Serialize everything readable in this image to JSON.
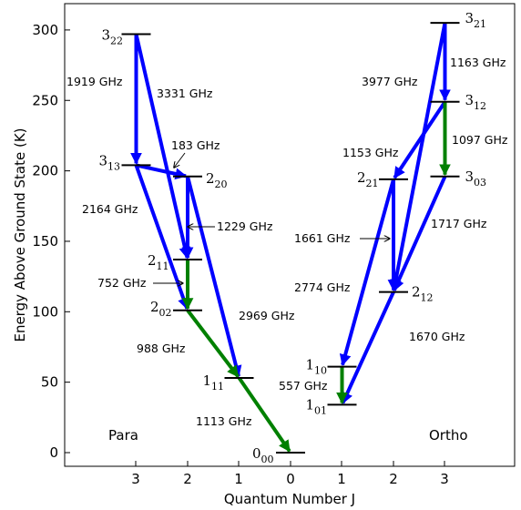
{
  "axes": {
    "ylabel": "Energy Above Ground State (K)",
    "xlabel": "Quantum Number J",
    "yticks": [
      "0",
      "50",
      "100",
      "150",
      "200",
      "250",
      "300"
    ],
    "xticks": [
      "3",
      "2",
      "1",
      "0",
      "1",
      "2",
      "3"
    ]
  },
  "regions": {
    "para": "Para",
    "ortho": "Ortho"
  },
  "levels": [
    {
      "id": "3_22",
      "J": 3,
      "side": "para",
      "E": 297,
      "main": "3",
      "sub": "22"
    },
    {
      "id": "3_13",
      "J": 3,
      "side": "para",
      "E": 204,
      "main": "3",
      "sub": "13"
    },
    {
      "id": "2_20",
      "J": 2,
      "side": "para",
      "E": 196,
      "main": "2",
      "sub": "20"
    },
    {
      "id": "2_11",
      "J": 2,
      "side": "para",
      "E": 137,
      "main": "2",
      "sub": "11"
    },
    {
      "id": "2_02",
      "J": 2,
      "side": "para",
      "E": 101,
      "main": "2",
      "sub": "02"
    },
    {
      "id": "1_11",
      "J": 1,
      "side": "para",
      "E": 53,
      "main": "1",
      "sub": "11"
    },
    {
      "id": "0_00",
      "J": 0,
      "side": "para",
      "E": 0,
      "main": "0",
      "sub": "00"
    },
    {
      "id": "3_21",
      "J": 3,
      "side": "ortho",
      "E": 305,
      "main": "3",
      "sub": "21"
    },
    {
      "id": "3_12",
      "J": 3,
      "side": "ortho",
      "E": 249,
      "main": "3",
      "sub": "12"
    },
    {
      "id": "3_03",
      "J": 3,
      "side": "ortho",
      "E": 196,
      "main": "3",
      "sub": "03"
    },
    {
      "id": "2_21",
      "J": 2,
      "side": "ortho",
      "E": 194,
      "main": "2",
      "sub": "21"
    },
    {
      "id": "2_12",
      "J": 2,
      "side": "ortho",
      "E": 114,
      "main": "2",
      "sub": "12"
    },
    {
      "id": "1_10",
      "J": 1,
      "side": "ortho",
      "E": 61,
      "main": "1",
      "sub": "10"
    },
    {
      "id": "1_01",
      "J": 1,
      "side": "ortho",
      "E": 34,
      "main": "1",
      "sub": "01"
    }
  ],
  "transitions": [
    {
      "from": "3_22",
      "to": "3_13",
      "freq": "1919 GHz",
      "color": "#0000ff"
    },
    {
      "from": "3_22",
      "to": "2_11",
      "freq": "3331 GHz",
      "color": "#0000ff"
    },
    {
      "from": "3_13",
      "to": "2_20",
      "freq": "183 GHz",
      "color": "#0000ff"
    },
    {
      "from": "3_13",
      "to": "2_02",
      "freq": "2164 GHz",
      "color": "#0000ff"
    },
    {
      "from": "2_20",
      "to": "2_11",
      "freq": "1229 GHz",
      "color": "#0000ff"
    },
    {
      "from": "2_20",
      "to": "1_11",
      "freq": "2969 GHz",
      "color": "#0000ff"
    },
    {
      "from": "2_11",
      "to": "2_02",
      "freq": "752 GHz",
      "color": "#008000"
    },
    {
      "from": "2_02",
      "to": "1_11",
      "freq": "988 GHz",
      "color": "#008000"
    },
    {
      "from": "1_11",
      "to": "0_00",
      "freq": "1113 GHz",
      "color": "#008000"
    },
    {
      "from": "3_21",
      "to": "3_12",
      "freq": "1163 GHz",
      "color": "#0000ff"
    },
    {
      "from": "3_21",
      "to": "2_12",
      "freq": "3977 GHz",
      "color": "#0000ff"
    },
    {
      "from": "3_12",
      "to": "2_21",
      "freq": "1153 GHz",
      "color": "#0000ff"
    },
    {
      "from": "3_12",
      "to": "3_03",
      "freq": "1097 GHz",
      "color": "#008000"
    },
    {
      "from": "3_03",
      "to": "2_12",
      "freq": "1717 GHz",
      "color": "#0000ff"
    },
    {
      "from": "2_21",
      "to": "2_12",
      "freq": "1661 GHz",
      "color": "#0000ff"
    },
    {
      "from": "2_21",
      "to": "1_10",
      "freq": "2774 GHz",
      "color": "#0000ff"
    },
    {
      "from": "2_12",
      "to": "1_01",
      "freq": "1670 GHz",
      "color": "#0000ff"
    },
    {
      "from": "1_10",
      "to": "1_01",
      "freq": "557 GHz",
      "color": "#008000"
    }
  ]
}
